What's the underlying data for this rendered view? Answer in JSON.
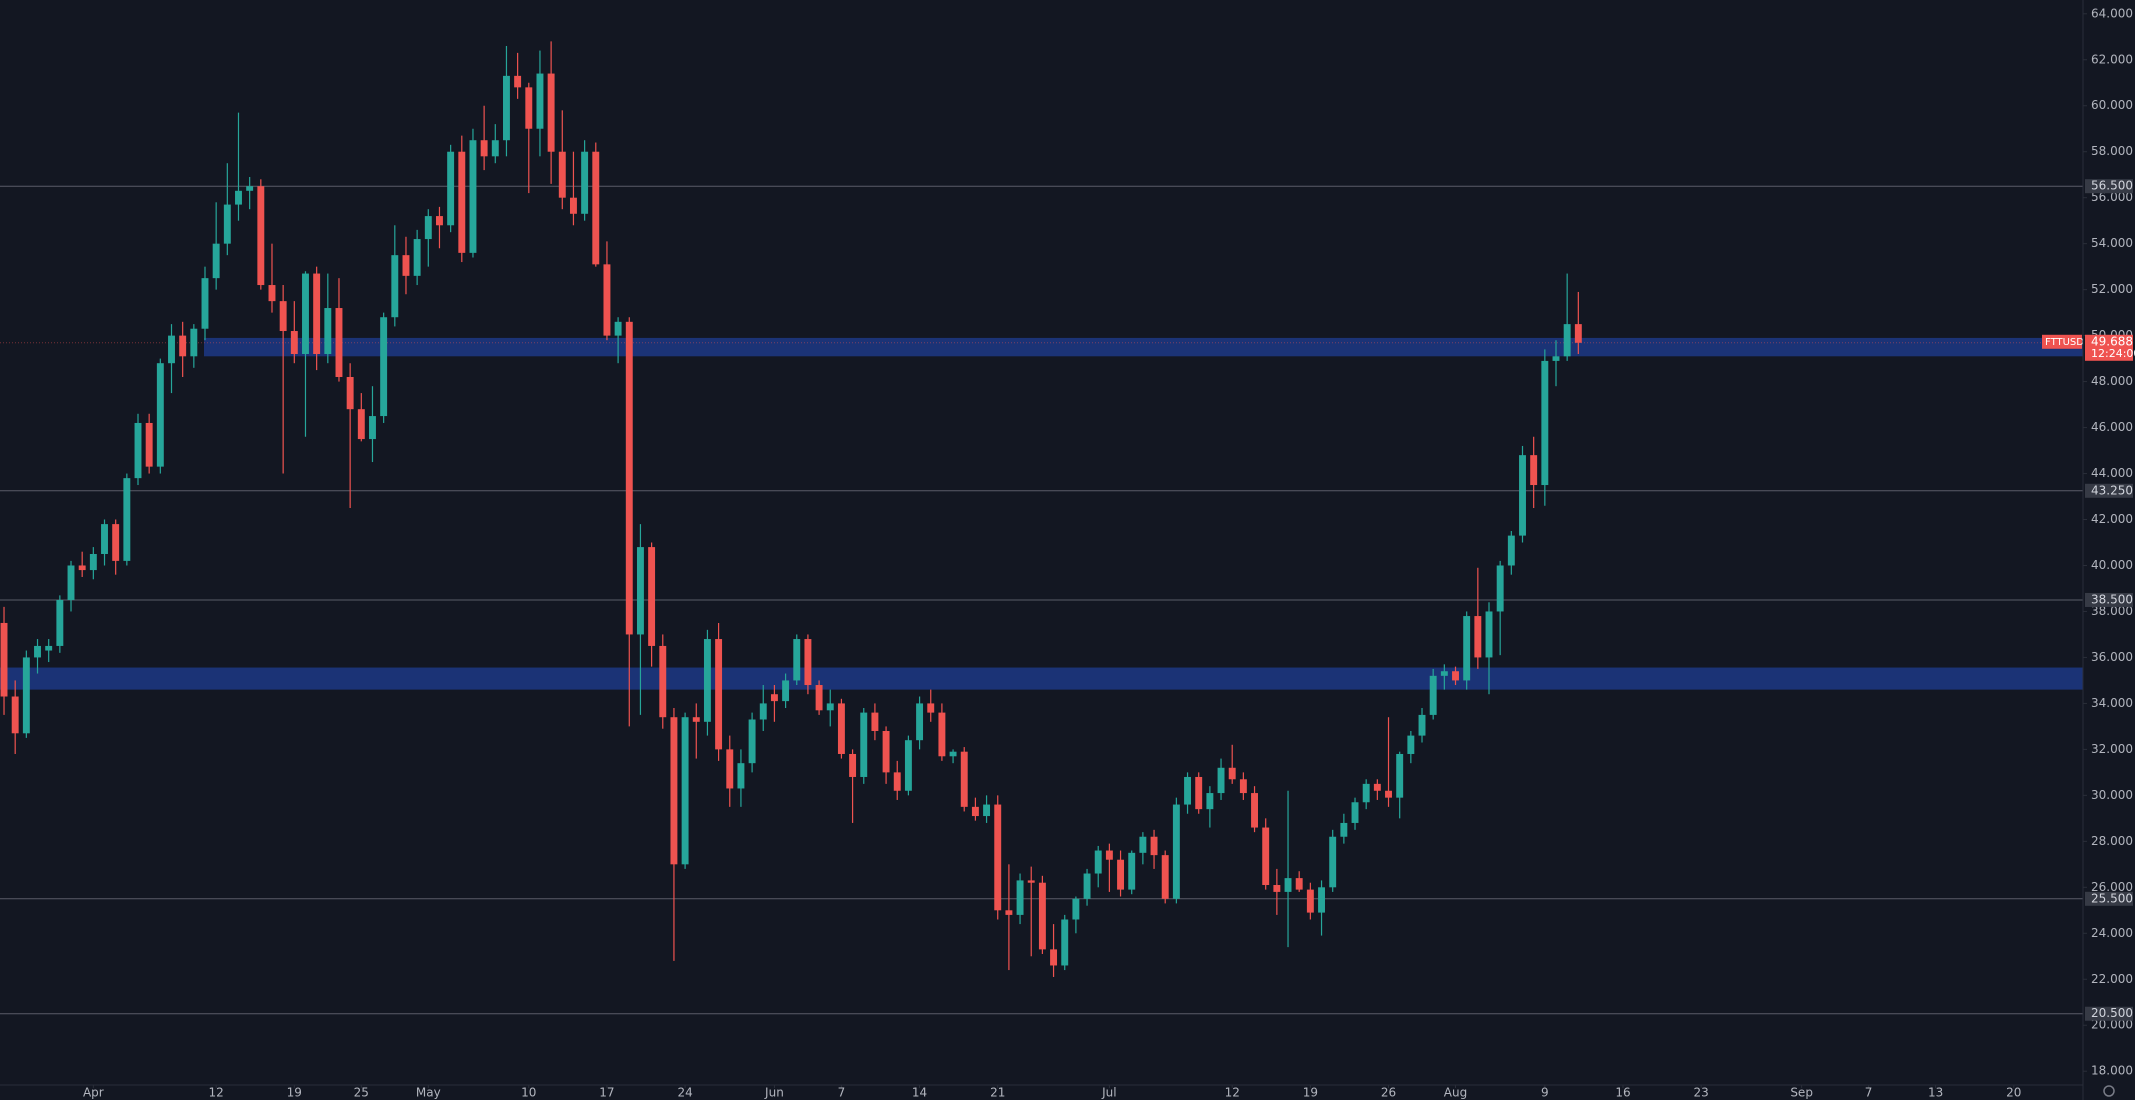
{
  "chart_data": {
    "type": "candlestick",
    "symbol": "FTTUSD",
    "countdown": "12:24:00",
    "up_color": "#26a69a",
    "down_color": "#ef5350",
    "zone_color": "#2962ff",
    "xlim": [
      -0.36,
      186.2
    ],
    "ylim": [
      17.4,
      64.6
    ],
    "xticks": [
      {
        "value": 8,
        "label": "Apr"
      },
      {
        "value": 19,
        "label": "12"
      },
      {
        "value": 26,
        "label": "19"
      },
      {
        "value": 32,
        "label": "25"
      },
      {
        "value": 38,
        "label": "May"
      },
      {
        "value": 47,
        "label": "10"
      },
      {
        "value": 54,
        "label": "17"
      },
      {
        "value": 61,
        "label": "24"
      },
      {
        "value": 69,
        "label": "Jun"
      },
      {
        "value": 75,
        "label": "7"
      },
      {
        "value": 82,
        "label": "14"
      },
      {
        "value": 89,
        "label": "21"
      },
      {
        "value": 99,
        "label": "Jul"
      },
      {
        "value": 110,
        "label": "12"
      },
      {
        "value": 117,
        "label": "19"
      },
      {
        "value": 124,
        "label": "26"
      },
      {
        "value": 130,
        "label": "Aug"
      },
      {
        "value": 138,
        "label": "9"
      },
      {
        "value": 145,
        "label": "16"
      },
      {
        "value": 152,
        "label": "23"
      },
      {
        "value": 161,
        "label": "Sep"
      },
      {
        "value": 167,
        "label": "7"
      },
      {
        "value": 173,
        "label": "13"
      },
      {
        "value": 180,
        "label": "20"
      }
    ],
    "yticks": [
      {
        "value": 18,
        "label": "18.000"
      },
      {
        "value": 20,
        "label": "20.000"
      },
      {
        "value": 22,
        "label": "22.000"
      },
      {
        "value": 24,
        "label": "24.000"
      },
      {
        "value": 26,
        "label": "26.000"
      },
      {
        "value": 28,
        "label": "28.000"
      },
      {
        "value": 30,
        "label": "30.000"
      },
      {
        "value": 32,
        "label": "32.000"
      },
      {
        "value": 34,
        "label": "34.000"
      },
      {
        "value": 36,
        "label": "36.000"
      },
      {
        "value": 38,
        "label": "38.000"
      },
      {
        "value": 40,
        "label": "40.000"
      },
      {
        "value": 42,
        "label": "42.000"
      },
      {
        "value": 44,
        "label": "44.000"
      },
      {
        "value": 46,
        "label": "46.000"
      },
      {
        "value": 48,
        "label": "48.000"
      },
      {
        "value": 50,
        "label": "50.000"
      },
      {
        "value": 52,
        "label": "52.000"
      },
      {
        "value": 54,
        "label": "54.000"
      },
      {
        "value": 56,
        "label": "56.000"
      },
      {
        "value": 58,
        "label": "58.000"
      },
      {
        "value": 60,
        "label": "60.000"
      },
      {
        "value": 62,
        "label": "62.000"
      },
      {
        "value": 64,
        "label": "64.000"
      }
    ],
    "levels": [
      {
        "value": 56.5,
        "label": "56.500"
      },
      {
        "value": 43.25,
        "label": "43.250"
      },
      {
        "value": 38.5,
        "label": "38.500"
      },
      {
        "value": 25.5,
        "label": "25.500"
      },
      {
        "value": 20.5,
        "label": "20.500"
      }
    ],
    "zones": [
      [
        49.1,
        49.9
      ],
      [
        34.6,
        35.56
      ]
    ],
    "candles": [
      [
        37.5,
        38.2,
        33.5,
        34.3
      ],
      [
        34.3,
        35,
        31.8,
        32.7
      ],
      [
        32.7,
        36.3,
        32.5,
        36
      ],
      [
        36,
        36.8,
        35.3,
        36.5
      ],
      [
        36.3,
        36.8,
        35.8,
        36.5
      ],
      [
        36.5,
        38.7,
        36.2,
        38.5
      ],
      [
        38.5,
        40.2,
        38,
        40
      ],
      [
        40,
        40.6,
        39.5,
        39.8
      ],
      [
        39.8,
        40.8,
        39.4,
        40.5
      ],
      [
        40.5,
        42,
        40,
        41.8
      ],
      [
        41.8,
        42,
        39.6,
        40.2
      ],
      [
        40.2,
        44,
        40,
        43.8
      ],
      [
        43.8,
        46.6,
        43.5,
        46.2
      ],
      [
        46.2,
        46.6,
        44,
        44.3
      ],
      [
        44.3,
        49,
        44,
        48.8
      ],
      [
        48.8,
        50.5,
        47.5,
        50
      ],
      [
        50,
        50.6,
        48.2,
        49.1
      ],
      [
        49.1,
        50.5,
        48.6,
        50.3
      ],
      [
        50.3,
        53,
        49.8,
        52.5
      ],
      [
        52.5,
        55.8,
        52,
        54
      ],
      [
        54,
        57.5,
        53.5,
        55.7
      ],
      [
        55.7,
        59.7,
        55,
        56.3
      ],
      [
        56.3,
        56.9,
        55.5,
        56.5
      ],
      [
        56.5,
        56.8,
        52,
        52.2
      ],
      [
        52.2,
        54,
        51,
        51.5
      ],
      [
        51.5,
        52.2,
        44,
        50.2
      ],
      [
        50.2,
        51.5,
        48.8,
        49.2
      ],
      [
        49.2,
        52.8,
        45.6,
        52.7
      ],
      [
        52.7,
        53,
        48.5,
        49.2
      ],
      [
        49.2,
        52.7,
        48.8,
        51.2
      ],
      [
        51.2,
        52.5,
        48,
        48.2
      ],
      [
        48.2,
        48.8,
        42.5,
        46.8
      ],
      [
        46.8,
        47.5,
        45.4,
        45.5
      ],
      [
        45.5,
        47.8,
        44.5,
        46.5
      ],
      [
        46.5,
        51,
        46.2,
        50.8
      ],
      [
        50.8,
        54.8,
        50.4,
        53.5
      ],
      [
        53.5,
        54.3,
        51.8,
        52.6
      ],
      [
        52.6,
        54.6,
        52.2,
        54.2
      ],
      [
        54.2,
        55.5,
        53,
        55.2
      ],
      [
        55.2,
        55.6,
        53.8,
        54.8
      ],
      [
        54.8,
        58.3,
        54.5,
        58
      ],
      [
        58,
        58.7,
        53.2,
        53.6
      ],
      [
        53.6,
        59,
        53.4,
        58.5
      ],
      [
        58.5,
        60,
        57.2,
        57.8
      ],
      [
        57.8,
        59.2,
        57.5,
        58.5
      ],
      [
        58.5,
        62.6,
        57.8,
        61.3
      ],
      [
        61.3,
        62.3,
        60.3,
        60.8
      ],
      [
        60.8,
        61,
        56.2,
        59
      ],
      [
        59,
        62.4,
        57.8,
        61.4
      ],
      [
        61.4,
        62.8,
        56.6,
        58
      ],
      [
        58,
        59.8,
        55.5,
        56
      ],
      [
        56,
        58,
        54.8,
        55.3
      ],
      [
        55.3,
        58.5,
        55,
        58
      ],
      [
        58,
        58.4,
        53,
        53.1
      ],
      [
        53.1,
        54.1,
        49.8,
        50
      ],
      [
        50,
        50.8,
        48.8,
        50.6
      ],
      [
        50.6,
        50.8,
        33,
        37
      ],
      [
        37,
        41.8,
        33.5,
        40.8
      ],
      [
        40.8,
        41,
        35.6,
        36.5
      ],
      [
        36.5,
        37,
        32.9,
        33.4
      ],
      [
        33.4,
        33.8,
        22.8,
        27
      ],
      [
        27,
        33.6,
        26.8,
        33.4
      ],
      [
        33.4,
        34,
        31.6,
        33.2
      ],
      [
        33.2,
        37.2,
        32.6,
        36.8
      ],
      [
        36.8,
        37.5,
        31.5,
        32
      ],
      [
        32,
        32.6,
        29.5,
        30.3
      ],
      [
        30.3,
        32,
        29.5,
        31.4
      ],
      [
        31.4,
        33.6,
        31,
        33.3
      ],
      [
        33.3,
        34.8,
        32.8,
        34
      ],
      [
        34.4,
        34.8,
        33.2,
        34.1
      ],
      [
        34.1,
        35.3,
        33.8,
        35
      ],
      [
        35,
        37,
        34.8,
        36.8
      ],
      [
        36.8,
        37,
        34.4,
        34.8
      ],
      [
        34.8,
        35,
        33.5,
        33.7
      ],
      [
        33.7,
        34.6,
        33,
        34
      ],
      [
        34,
        34.2,
        31.6,
        31.8
      ],
      [
        31.8,
        32,
        28.8,
        30.8
      ],
      [
        30.8,
        33.8,
        30.5,
        33.6
      ],
      [
        33.6,
        34,
        32.4,
        32.8
      ],
      [
        32.8,
        33,
        30.5,
        31
      ],
      [
        31,
        31.5,
        29.8,
        30.2
      ],
      [
        30.2,
        32.6,
        30,
        32.4
      ],
      [
        32.4,
        34.3,
        32,
        34
      ],
      [
        34,
        34.6,
        33.2,
        33.6
      ],
      [
        33.6,
        34,
        31.5,
        31.7
      ],
      [
        31.7,
        32,
        31.4,
        31.9
      ],
      [
        31.9,
        32.1,
        29.3,
        29.5
      ],
      [
        29.5,
        29.9,
        28.9,
        29.1
      ],
      [
        29.1,
        30,
        28.8,
        29.6
      ],
      [
        29.6,
        30,
        24.6,
        25
      ],
      [
        25,
        27,
        22.4,
        24.8
      ],
      [
        24.8,
        26.6,
        24.4,
        26.3
      ],
      [
        26.3,
        26.9,
        23,
        26.2
      ],
      [
        26.2,
        26.5,
        23.1,
        23.3
      ],
      [
        23.3,
        24.4,
        22.1,
        22.6
      ],
      [
        22.6,
        24.8,
        22.4,
        24.6
      ],
      [
        24.6,
        25.6,
        24,
        25.5
      ],
      [
        25.5,
        26.8,
        25.2,
        26.6
      ],
      [
        26.6,
        27.8,
        26,
        27.6
      ],
      [
        27.6,
        27.9,
        25.8,
        27.2
      ],
      [
        27.2,
        27.6,
        25.6,
        25.9
      ],
      [
        25.9,
        27.6,
        25.7,
        27.5
      ],
      [
        27.5,
        28.4,
        27,
        28.2
      ],
      [
        28.2,
        28.5,
        26.8,
        27.4
      ],
      [
        27.4,
        27.6,
        25.3,
        25.5
      ],
      [
        25.5,
        29.9,
        25.3,
        29.6
      ],
      [
        29.6,
        31,
        29.2,
        30.8
      ],
      [
        30.8,
        31,
        29.2,
        29.4
      ],
      [
        29.4,
        30.4,
        28.6,
        30.1
      ],
      [
        30.1,
        31.6,
        29.8,
        31.2
      ],
      [
        31.2,
        32.2,
        30.5,
        30.7
      ],
      [
        30.7,
        31,
        29.8,
        30.1
      ],
      [
        30.1,
        30.4,
        28.4,
        28.6
      ],
      [
        28.6,
        29,
        25.9,
        26.1
      ],
      [
        26.1,
        26.8,
        24.8,
        25.8
      ],
      [
        25.8,
        30.2,
        23.4,
        26.4
      ],
      [
        26.4,
        26.7,
        25.8,
        25.9
      ],
      [
        25.9,
        26.2,
        24.6,
        24.9
      ],
      [
        24.9,
        26.3,
        23.9,
        26
      ],
      [
        26,
        28.5,
        25.8,
        28.2
      ],
      [
        28.2,
        29.2,
        27.9,
        28.8
      ],
      [
        28.8,
        29.9,
        28.5,
        29.7
      ],
      [
        29.7,
        30.7,
        29.4,
        30.5
      ],
      [
        30.5,
        30.7,
        29.8,
        30.2
      ],
      [
        30.2,
        33.4,
        29.5,
        29.9
      ],
      [
        29.9,
        31.9,
        29,
        31.8
      ],
      [
        31.8,
        32.8,
        31.4,
        32.6
      ],
      [
        32.6,
        33.8,
        32.3,
        33.5
      ],
      [
        33.5,
        35.5,
        33.3,
        35.2
      ],
      [
        35.2,
        35.7,
        34.6,
        35.4
      ],
      [
        35.4,
        35.6,
        34.8,
        35
      ],
      [
        35,
        38,
        34.6,
        37.8
      ],
      [
        37.8,
        39.9,
        35.5,
        36
      ],
      [
        36,
        38.4,
        34.4,
        38
      ],
      [
        38,
        40.2,
        36.1,
        40
      ],
      [
        40,
        41.5,
        39.6,
        41.3
      ],
      [
        41.3,
        45.2,
        41,
        44.8
      ],
      [
        44.8,
        45.6,
        42.5,
        43.5
      ],
      [
        43.5,
        49.4,
        42.6,
        48.9
      ],
      [
        48.9,
        49.8,
        47.8,
        49.1
      ],
      [
        49.1,
        52.7,
        48.9,
        50.5
      ],
      [
        50.5,
        51.9,
        49.2,
        49.688
      ]
    ]
  }
}
